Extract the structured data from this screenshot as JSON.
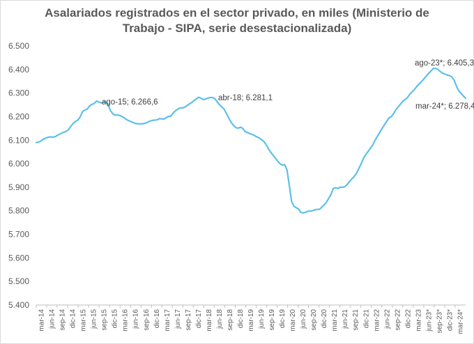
{
  "chart_data": {
    "type": "line",
    "title": "Asalariados registrados en el sector privado, en miles (Ministerio de Trabajo - SIPA, serie desestacionalizada)",
    "title_lines": [
      "Asalariados registrados en el sector privado, en miles (Ministerio de",
      "Trabajo - SIPA, serie desestacionalizada)"
    ],
    "xlabel": "",
    "ylabel": "",
    "ylim": [
      5400,
      6500
    ],
    "yticks": [
      5400,
      5500,
      5600,
      5700,
      5800,
      5900,
      6000,
      6100,
      6200,
      6300,
      6400,
      6500
    ],
    "ytick_labels": [
      "5.400",
      "5.500",
      "5.600",
      "5.700",
      "5.800",
      "5.900",
      "6.000",
      "6.100",
      "6.200",
      "6.300",
      "6.400",
      "6.500"
    ],
    "xtick_labels": [
      "mar-14",
      "jun-14",
      "sep-14",
      "dic-14",
      "mar-15",
      "jun-15",
      "sep-15",
      "dic-15",
      "mar-16",
      "jun-16",
      "sep-16",
      "dic-16",
      "mar-17",
      "jun-17",
      "sep-17",
      "dic-17",
      "mar-18",
      "jun-18",
      "sep-18",
      "dic-18",
      "mar-19",
      "jun-19",
      "sep-19",
      "dic-19",
      "mar-20",
      "jun-20",
      "sep-20",
      "dic-20",
      "mar-21",
      "jun-21",
      "sep-21",
      "dic-21",
      "mar-22",
      "jun-22",
      "sep-22",
      "dic-22",
      "mar-23",
      "jun-23*",
      "sep-23*",
      "dic-23*",
      "mar-24*"
    ],
    "grid": false,
    "legend": "none",
    "line_color": "#5bc0eb",
    "series": [
      {
        "values": [
          6090,
          6092,
          6096,
          6104,
          6108,
          6112,
          6114,
          6113,
          6114,
          6120,
          6125,
          6130,
          6134,
          6138,
          6146,
          6160,
          6172,
          6180,
          6186,
          6200,
          6222,
          6228,
          6232,
          6246,
          6252,
          6256,
          6266,
          6262,
          6258,
          6262,
          6262,
          6250,
          6225,
          6212,
          6206,
          6207,
          6205,
          6200,
          6194,
          6187,
          6182,
          6178,
          6174,
          6170,
          6170,
          6169,
          6170,
          6172,
          6176,
          6181,
          6184,
          6185,
          6186,
          6191,
          6191,
          6189,
          6196,
          6201,
          6202,
          6215,
          6225,
          6232,
          6237,
          6237,
          6240,
          6247,
          6254,
          6260,
          6268,
          6276,
          6282,
          6278,
          6272,
          6275,
          6279,
          6281,
          6281,
          6276,
          6262,
          6250,
          6241,
          6231,
          6212,
          6193,
          6175,
          6163,
          6153,
          6151,
          6155,
          6150,
          6136,
          6132,
          6128,
          6124,
          6120,
          6114,
          6110,
          6103,
          6095,
          6082,
          6064,
          6049,
          6036,
          6024,
          6011,
          6000,
          5994,
          5996,
          5975,
          5910,
          5840,
          5820,
          5813,
          5808,
          5793,
          5791,
          5794,
          5798,
          5799,
          5800,
          5804,
          5806,
          5806,
          5815,
          5825,
          5836,
          5853,
          5870,
          5895,
          5898,
          5895,
          5900,
          5900,
          5903,
          5912,
          5925,
          5936,
          5946,
          5960,
          5980,
          6000,
          6023,
          6040,
          6052,
          6066,
          6080,
          6100,
          6117,
          6133,
          6150,
          6165,
          6180,
          6195,
          6200,
          6213,
          6230,
          6242,
          6254,
          6266,
          6273,
          6282,
          6296,
          6306,
          6316,
          6329,
          6339,
          6349,
          6360,
          6372,
          6383,
          6393,
          6404,
          6405,
          6401,
          6392,
          6385,
          6381,
          6377,
          6374,
          6369,
          6356,
          6330,
          6310,
          6299,
          6288,
          6278
        ]
      }
    ],
    "annotations": [
      {
        "text": "ago-15; 6.266,6",
        "label": "ago-15",
        "value": 6266.6
      },
      {
        "text": "abr-18; 6.281,1",
        "label": "abr-18",
        "value": 6281.1
      },
      {
        "text": "ago-23*; 6.405,3",
        "label": "ago-23*",
        "value": 6405.3
      },
      {
        "text": "mar-24*; 6.278,4",
        "label": "mar-24*",
        "value": 6278.4
      }
    ]
  }
}
